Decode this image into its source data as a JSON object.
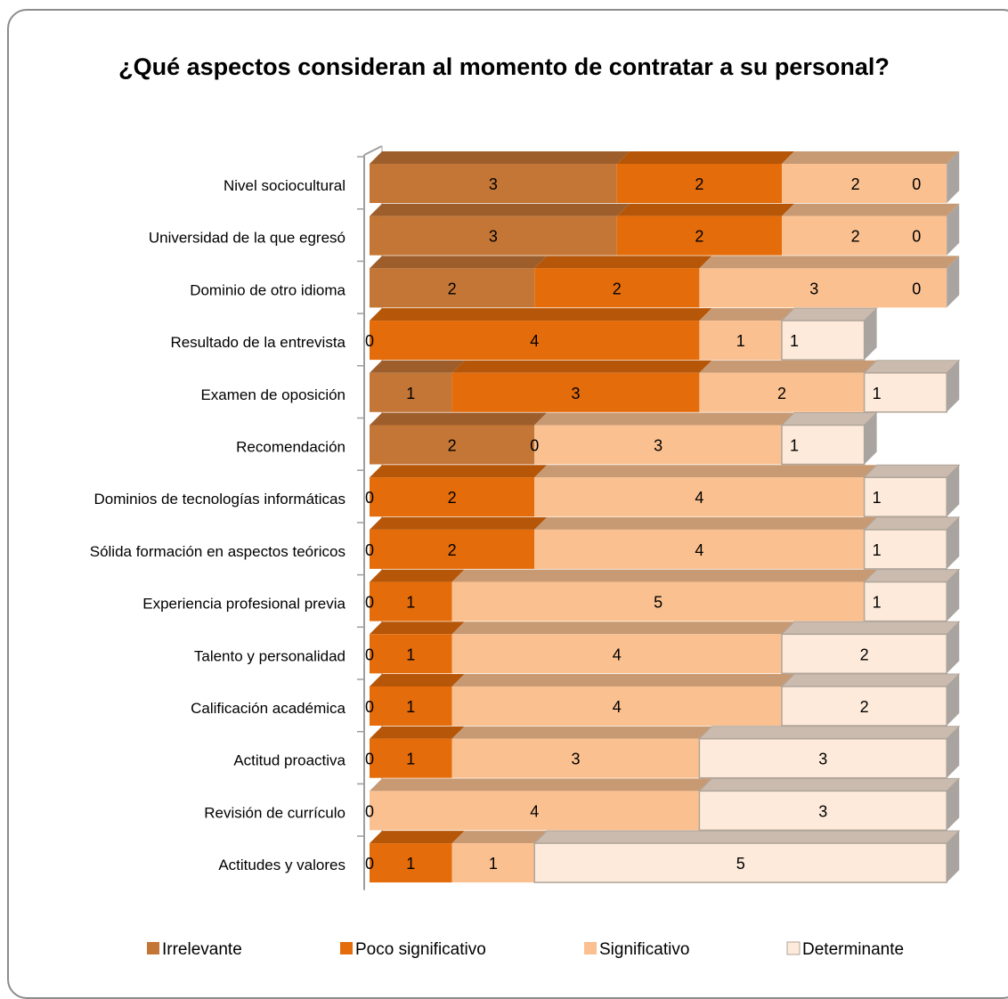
{
  "chart_data": {
    "type": "bar",
    "orientation": "horizontal",
    "stacked": true,
    "three_d": true,
    "title": "¿Qué aspectos consideran al momento de contratar a su personal?",
    "categories": [
      "Nivel sociocultural",
      "Universidad de la que egresó",
      "Dominio de otro idioma",
      "Resultado de la entrevista",
      "Examen de oposición",
      "Recomendación",
      "Dominios de tecnologías informáticas",
      "Sólida formación en aspectos teóricos",
      "Experiencia profesional previa",
      "Talento y personalidad",
      "Calificación académica",
      "Actitud proactiva",
      "Revisión de currículo",
      "Actitudes y valores"
    ],
    "series": [
      {
        "name": "Irrelevante",
        "color": "#c47637",
        "values": [
          3,
          3,
          2,
          0,
          1,
          2,
          0,
          0,
          0,
          0,
          0,
          0,
          0,
          0
        ]
      },
      {
        "name": "Poco significativo",
        "color": "#e46c0a",
        "values": [
          2,
          2,
          2,
          4,
          3,
          0,
          2,
          2,
          1,
          1,
          1,
          1,
          0,
          1
        ]
      },
      {
        "name": "Significativo",
        "color": "#fac090",
        "values": [
          2,
          2,
          3,
          1,
          2,
          3,
          4,
          4,
          5,
          4,
          4,
          3,
          4,
          1
        ]
      },
      {
        "name": "Determinante",
        "color": "#fdeada",
        "values": [
          0,
          0,
          0,
          1,
          1,
          1,
          1,
          1,
          1,
          2,
          2,
          3,
          3,
          5
        ]
      }
    ],
    "data_labels": [
      [
        "3",
        "2",
        "2",
        "0"
      ],
      [
        "3",
        "2",
        "2",
        "0"
      ],
      [
        "2",
        "2",
        "3",
        "0"
      ],
      [
        "0",
        "4",
        "1",
        "1"
      ],
      [
        "1",
        "3",
        "2",
        "1"
      ],
      [
        "2",
        "0",
        "3",
        "1"
      ],
      [
        "0",
        "2",
        "4",
        "1"
      ],
      [
        "0",
        "2",
        "4",
        "1"
      ],
      [
        "0",
        "1",
        "5",
        "1"
      ],
      [
        "0",
        "1",
        "4",
        "2"
      ],
      [
        "0",
        "1",
        "4",
        "2"
      ],
      [
        "0",
        "1",
        "3",
        "3"
      ],
      [
        "0",
        "",
        "4",
        "3"
      ],
      [
        "0",
        "1",
        "1",
        "5"
      ]
    ],
    "xlim": [
      0,
      7
    ],
    "grid": false,
    "legend": "bottom"
  }
}
